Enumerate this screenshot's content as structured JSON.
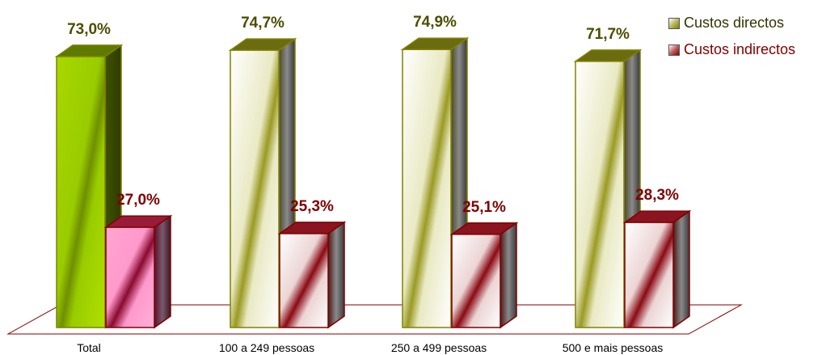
{
  "chart_data": {
    "type": "bar",
    "categories": [
      "Total",
      "100 a 249 pessoas",
      "250 a 499 pessoas",
      "500 e mais pessoas"
    ],
    "series": [
      {
        "name": "Custos directos",
        "values": [
          73.0,
          74.7,
          74.9,
          71.7
        ],
        "labels": [
          "73,0%",
          "74,7%",
          "74,9%",
          "71,7%"
        ]
      },
      {
        "name": "Custos indirectos",
        "values": [
          27.0,
          25.3,
          25.1,
          28.3
        ],
        "labels": [
          "27,0%",
          "25,3%",
          "25,1%",
          "28,3%"
        ]
      }
    ],
    "ylim": [
      0,
      100
    ],
    "unit": "%",
    "grid": false,
    "legend_position": "top-right",
    "colors": {
      "direct_label": "#4d4d00",
      "indirect_label": "#800000",
      "direct_stroke": "#808000",
      "indirect_stroke": "#800000",
      "floor_stroke": "#800000",
      "total_direct_fill": "#99cc00",
      "total_indirect_fill": "#ff99cc"
    }
  }
}
